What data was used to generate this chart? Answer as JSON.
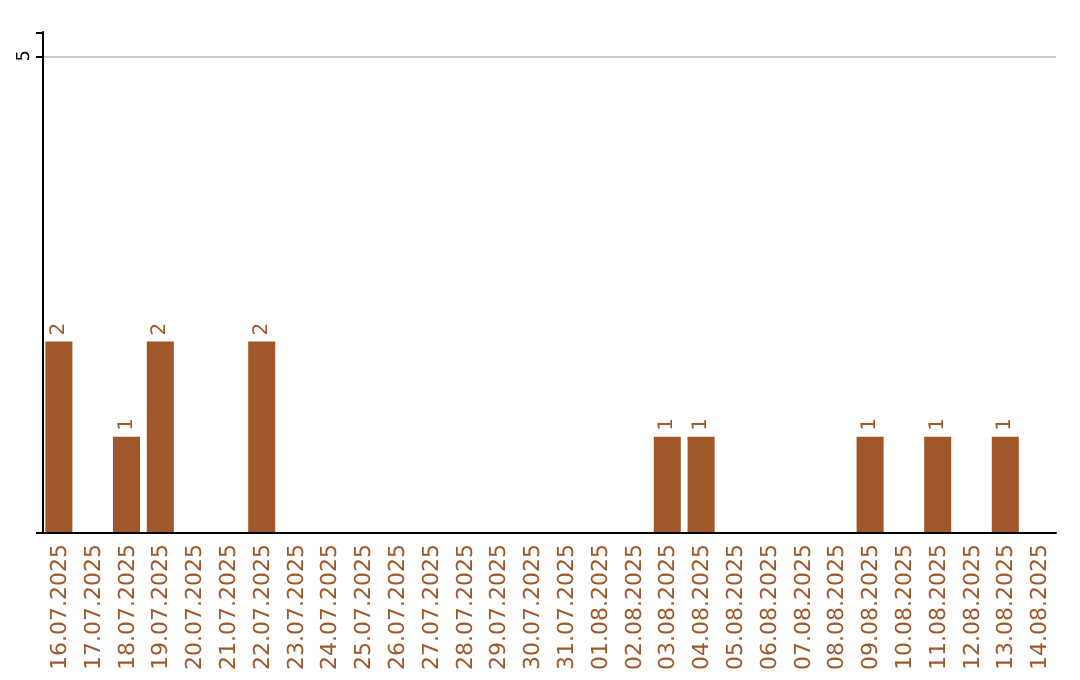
{
  "chart_data": {
    "type": "bar",
    "categories": [
      "16.07.2025",
      "17.07.2025",
      "18.07.2025",
      "19.07.2025",
      "20.07.2025",
      "21.07.2025",
      "22.07.2025",
      "23.07.2025",
      "24.07.2025",
      "25.07.2025",
      "26.07.2025",
      "27.07.2025",
      "28.07.2025",
      "29.07.2025",
      "30.07.2025",
      "31.07.2025",
      "01.08.2025",
      "02.08.2025",
      "03.08.2025",
      "04.08.2025",
      "05.08.2025",
      "06.08.2025",
      "07.08.2025",
      "08.08.2025",
      "09.08.2025",
      "10.08.2025",
      "11.08.2025",
      "12.08.2025",
      "13.08.2025",
      "14.08.2025"
    ],
    "values": [
      2,
      0,
      1,
      2,
      0,
      0,
      2,
      0,
      0,
      0,
      0,
      0,
      0,
      0,
      0,
      0,
      0,
      0,
      1,
      1,
      0,
      0,
      0,
      0,
      1,
      0,
      1,
      0,
      1,
      0
    ],
    "value_labels": [
      "2",
      null,
      "1",
      "2",
      null,
      null,
      "2",
      null,
      null,
      null,
      null,
      null,
      null,
      null,
      null,
      null,
      null,
      null,
      "1",
      "1",
      null,
      null,
      null,
      null,
      "1",
      null,
      "1",
      null,
      "1",
      null
    ],
    "color": "#a0582a",
    "ylim": [
      0,
      5.25
    ],
    "yticks": [
      5
    ],
    "grid": "y"
  }
}
